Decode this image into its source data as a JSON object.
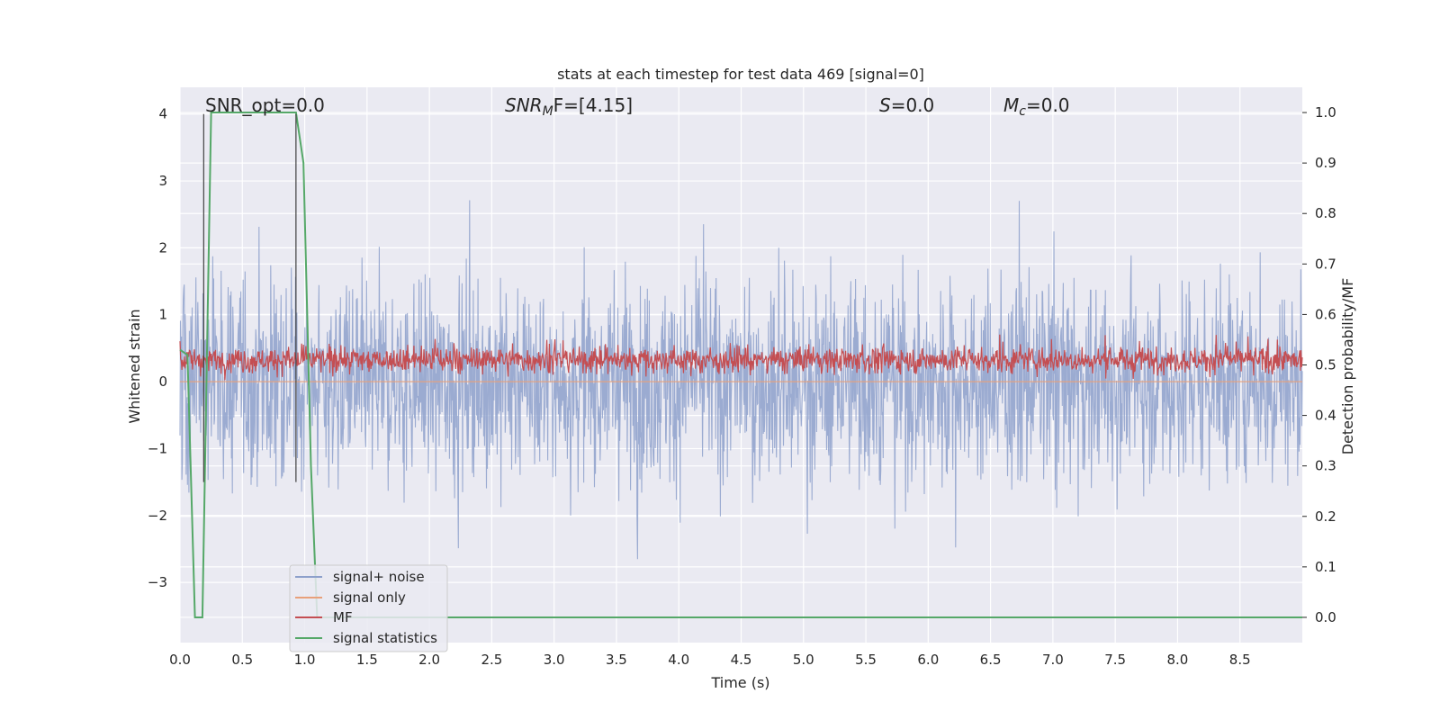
{
  "chart_data": {
    "type": "line",
    "title": "stats at each timestep for test data 469 [signal=0]",
    "xlabel": "Time (s)",
    "ylabel_left": "Whitened strain",
    "ylabel_right": "Detection probability/MF",
    "xlim": [
      0.0,
      9.0
    ],
    "ylim_left": [
      -3.9,
      4.4
    ],
    "ylim_right": [
      -0.05,
      1.05
    ],
    "x_ticks": [
      "0.0",
      "0.5",
      "1.0",
      "1.5",
      "2.0",
      "2.5",
      "3.0",
      "3.5",
      "4.0",
      "4.5",
      "5.0",
      "5.5",
      "6.0",
      "6.5",
      "7.0",
      "7.5",
      "8.0",
      "8.5"
    ],
    "y_ticks_left": [
      "4",
      "3",
      "2",
      "1",
      "0",
      "−1",
      "−2",
      "−3"
    ],
    "y_ticks_right": [
      "1.0",
      "0.9",
      "0.8",
      "0.7",
      "0.6",
      "0.5",
      "0.4",
      "0.3",
      "0.2",
      "0.1",
      "0.0"
    ],
    "grid": true,
    "legend_position": "lower-left",
    "annotations": {
      "snr_opt": "SNR_opt=0.0",
      "snr_mf": "SNR",
      "snr_mf_sub": "M",
      "snr_mf_rest": "F=[4.15]",
      "s": "S",
      "s_rest": "=0.0",
      "mc": "M",
      "mc_sub": "c",
      "mc_rest": "=0.0"
    },
    "series": [
      {
        "name": "signal+ noise",
        "color": "#8da0cb",
        "axis": "left",
        "description_range": [
          -3.4,
          4.0
        ]
      },
      {
        "name": "signal only",
        "color": "#e8a07a",
        "axis": "left",
        "values_constant": 0.0
      },
      {
        "name": "MF",
        "color": "#c44e52",
        "axis": "right",
        "typical_range": [
          0.47,
          0.55
        ]
      },
      {
        "name": "signal statistics",
        "color": "#55a868",
        "axis": "right",
        "x": [
          0.0,
          0.06,
          0.12,
          0.18,
          0.25,
          0.93,
          0.99,
          1.05,
          1.1,
          9.0
        ],
        "y": [
          0.53,
          0.52,
          0.0,
          0.0,
          1.0,
          1.0,
          0.9,
          0.3,
          0.0,
          0.0
        ]
      }
    ],
    "vertical_lines": [
      0.19,
      0.93
    ]
  },
  "colors": {
    "background": "#eaeaf2",
    "grid": "#ffffff",
    "noise": "#8da0cb",
    "mf": "#c44e52",
    "stats": "#55a868",
    "signal_only": "#e8a07a"
  }
}
